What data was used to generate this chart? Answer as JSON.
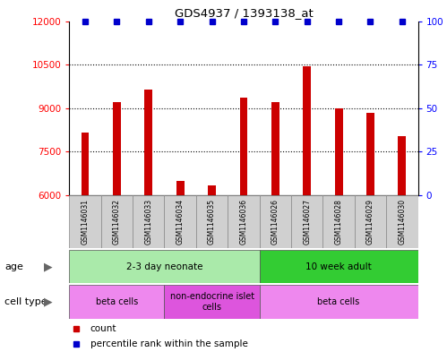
{
  "title": "GDS4937 / 1393138_at",
  "samples": [
    "GSM1146031",
    "GSM1146032",
    "GSM1146033",
    "GSM1146034",
    "GSM1146035",
    "GSM1146036",
    "GSM1146026",
    "GSM1146027",
    "GSM1146028",
    "GSM1146029",
    "GSM1146030"
  ],
  "counts": [
    8150,
    9200,
    9650,
    6500,
    6350,
    9350,
    9200,
    10450,
    9000,
    8850,
    8050
  ],
  "percentiles": [
    100,
    100,
    100,
    100,
    100,
    100,
    100,
    100,
    100,
    100,
    100
  ],
  "ylim_left": [
    6000,
    12000
  ],
  "ylim_right": [
    0,
    100
  ],
  "yticks_left": [
    6000,
    7500,
    9000,
    10500,
    12000
  ],
  "yticks_right": [
    0,
    25,
    50,
    75,
    100
  ],
  "bar_color": "#cc0000",
  "dot_color": "#0000cc",
  "age_groups": [
    {
      "label": "2-3 day neonate",
      "start": 0,
      "end": 6,
      "color": "#aaeaaa"
    },
    {
      "label": "10 week adult",
      "start": 6,
      "end": 11,
      "color": "#33cc33"
    }
  ],
  "cell_type_groups": [
    {
      "label": "beta cells",
      "start": 0,
      "end": 3,
      "color": "#ee88ee"
    },
    {
      "label": "non-endocrine islet\ncells",
      "start": 3,
      "end": 6,
      "color": "#dd55dd"
    },
    {
      "label": "beta cells",
      "start": 6,
      "end": 11,
      "color": "#ee88ee"
    }
  ],
  "legend_count_label": "count",
  "legend_percentile_label": "percentile rank within the sample",
  "background_color": "#ffffff",
  "row_label_age": "age",
  "row_label_cell_type": "cell type",
  "label_box_color": "#d0d0d0",
  "bar_width": 0.25
}
